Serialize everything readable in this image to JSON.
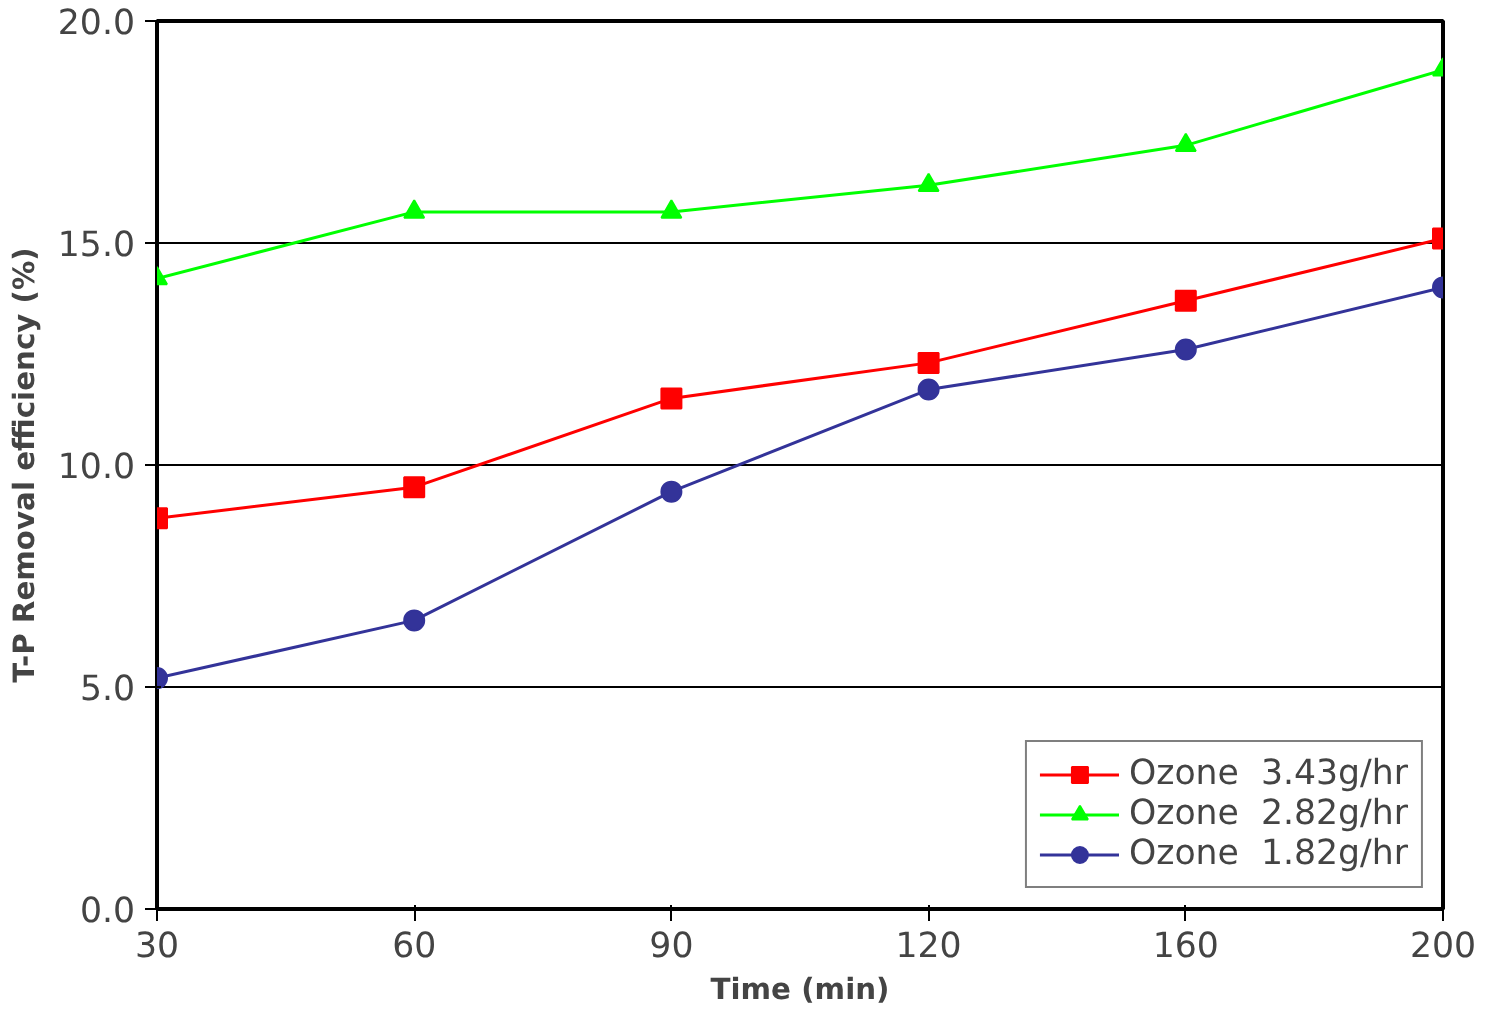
{
  "chart_data": {
    "type": "line",
    "xlabel": "Time (min)",
    "ylabel": "T-P Removal efficiency (%)",
    "categories": [
      "30",
      "60",
      "90",
      "120",
      "160",
      "200"
    ],
    "series": [
      {
        "name": "Ozone  3.43g/hr",
        "color": "#ff0000",
        "marker": "square",
        "values": [
          8.8,
          9.5,
          11.5,
          12.3,
          13.7,
          15.1
        ]
      },
      {
        "name": "Ozone  2.82g/hr",
        "color": "#00ff00",
        "marker": "triangle",
        "values": [
          14.2,
          15.7,
          15.7,
          16.3,
          17.2,
          18.9
        ]
      },
      {
        "name": "Ozone  1.82g/hr",
        "color": "#333399",
        "marker": "circle",
        "values": [
          5.2,
          6.5,
          9.4,
          11.7,
          12.6,
          14.0
        ]
      }
    ],
    "ylim": [
      0,
      20
    ],
    "yticks": [
      {
        "value": 0,
        "label": "0.0"
      },
      {
        "value": 5,
        "label": "5.0"
      },
      {
        "value": 10,
        "label": "10.0"
      },
      {
        "value": 15,
        "label": "15.0"
      },
      {
        "value": 20,
        "label": "20.0"
      }
    ],
    "grid": "y",
    "legend": "bottom right",
    "line_style": "solid"
  }
}
